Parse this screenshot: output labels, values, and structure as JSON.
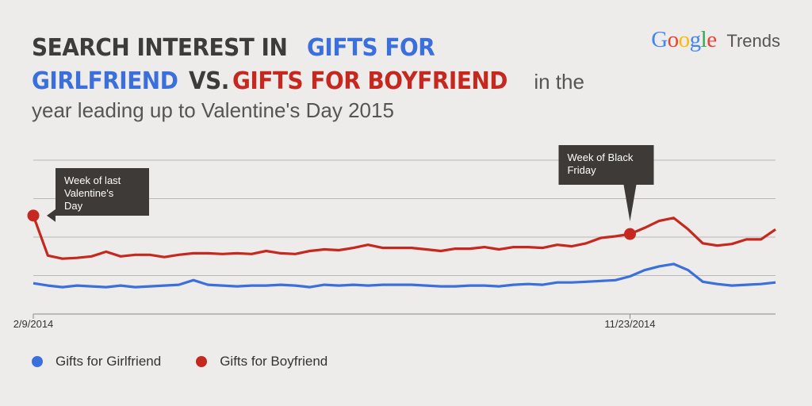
{
  "heading": {
    "line1_part1": "SEARCH INTEREST IN ",
    "line1_part2": "GIFTS FOR",
    "line2_part1": "GIRLFRIEND",
    "line2_part2": " VS. ",
    "line2_part3": "GIFTS FOR BOYFRIEND",
    "line2_part4": " in the",
    "line3": "year leading up to Valentine's Day 2015"
  },
  "brand": {
    "letters": [
      "G",
      "o",
      "o",
      "g",
      "l",
      "e"
    ],
    "letter_colors": [
      "#4285f4",
      "#ea4335",
      "#fbbc05",
      "#4285f4",
      "#34a853",
      "#ea4335"
    ],
    "word": "Trends"
  },
  "colors": {
    "girlfriend": "#3b6fdb",
    "boyfriend": "#c6281f",
    "grid": "#b9b9b9",
    "axis": "#8a8a8a",
    "callout_bg": "#3d3a37"
  },
  "chart_data": {
    "type": "line",
    "x_ticks": [
      {
        "index": 0,
        "label": "2/9/2014"
      },
      {
        "index": 41,
        "label": "11/23/2014"
      }
    ],
    "ylim": [
      0,
      100
    ],
    "grid": true,
    "legend_position": "bottom-left",
    "series": [
      {
        "name": "Gifts for Girlfriend",
        "color": "#3b6fdb",
        "values": [
          20,
          18.5,
          17.5,
          18.5,
          18,
          17.5,
          18.5,
          17.5,
          18,
          18.5,
          19,
          22,
          19,
          18.5,
          18,
          18.5,
          18.5,
          19,
          18.5,
          17.5,
          19,
          18.5,
          19,
          18.5,
          19,
          19,
          19,
          18.5,
          18,
          18,
          18.5,
          18.5,
          18,
          19,
          19.5,
          19,
          20.5,
          20.5,
          21,
          21.5,
          22,
          24.5,
          28.5,
          31,
          32.5,
          28.5,
          21,
          19.5,
          18.5,
          19,
          19.5,
          20.5
        ]
      },
      {
        "name": "Gifts for Boyfriend",
        "color": "#c6281f",
        "values": [
          64,
          38,
          36,
          36.5,
          37.5,
          40.5,
          37.5,
          38.5,
          38.5,
          37,
          38.5,
          39.5,
          39.5,
          39,
          39.5,
          39,
          41,
          39.5,
          39,
          41,
          42,
          41.5,
          43,
          45,
          43,
          43,
          43,
          42,
          41,
          42.5,
          42.5,
          43.5,
          42,
          43.5,
          43.5,
          43,
          45,
          44,
          46,
          49.5,
          50.5,
          52,
          56,
          60.5,
          62.5,
          55,
          46,
          44.5,
          45.5,
          48.5,
          48.5,
          55
        ]
      }
    ],
    "annotations": [
      {
        "series": 1,
        "index": 0,
        "text": [
          "Week of last",
          "Valentine's",
          "Day"
        ]
      },
      {
        "series": 1,
        "index": 41,
        "text": [
          "Week of Black",
          "Friday"
        ]
      }
    ]
  },
  "legend": [
    {
      "label": "Gifts for Girlfriend",
      "color": "#3b6fdb"
    },
    {
      "label": "Gifts for Boyfriend",
      "color": "#c6281f"
    }
  ]
}
